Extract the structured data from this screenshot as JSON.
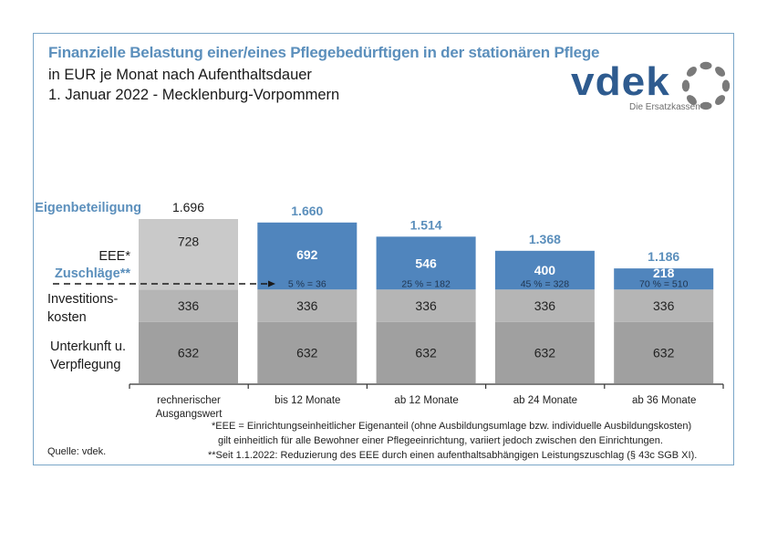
{
  "header": {
    "title": "Finanzielle Belastung einer/eines Pflegebedürftigen in der stationären Pflege",
    "subtitle": "in EUR je Monat nach Aufenthaltsdauer",
    "date_region": "1. Januar 2022 - Mecklenburg-Vorpommern"
  },
  "logo": {
    "wordmark": "vdek",
    "tagline": "Die Ersatzkassen"
  },
  "colors": {
    "title_blue": "#5b8fbc",
    "eee_blue": "#5085bd",
    "eee_grey": "#c9c9c9",
    "invest_grey": "#b5b5b5",
    "unterkunft_grey": "#a0a0a0",
    "logo_blue": "#2e5b8f"
  },
  "row_labels": {
    "eigenbeteiligung": "Eigenbeteiligung",
    "eee": "EEE*",
    "zuschlaege": "Zuschläge**",
    "investitionskosten_1": "Investitions-",
    "investitionskosten_2": "kosten",
    "unterkunft_1": "Unterkunft u.",
    "unterkunft_2": "Verpflegung"
  },
  "chart_data": {
    "type": "bar",
    "stacked": true,
    "title": "Finanzielle Belastung einer/eines Pflegebedürftigen in der stationären Pflege",
    "subtitle": "in EUR je Monat nach Aufenthaltsdauer – 1. Januar 2022 - Mecklenburg-Vorpommern",
    "xlabel": "",
    "ylabel": "EUR je Monat",
    "categories": [
      "rechnerischer Ausgangswert",
      "bis 12 Monate",
      "ab 12 Monate",
      "ab 24 Monate",
      "ab 36 Monate"
    ],
    "category_lines": [
      [
        "rechnerischer",
        "Ausgangswert"
      ],
      [
        "bis 12 Monate"
      ],
      [
        "ab 12 Monate"
      ],
      [
        "ab 24 Monate"
      ],
      [
        "ab 36 Monate"
      ]
    ],
    "series": [
      {
        "name": "Unterkunft u. Verpflegung",
        "values": [
          632,
          632,
          632,
          632,
          632
        ]
      },
      {
        "name": "Investitionskosten",
        "values": [
          336,
          336,
          336,
          336,
          336
        ]
      },
      {
        "name": "EEE*",
        "values": [
          728,
          692,
          546,
          400,
          218
        ]
      }
    ],
    "totals": [
      1696,
      1660,
      1514,
      1368,
      1186
    ],
    "total_labels": [
      "1.696",
      "1.660",
      "1.514",
      "1.368",
      "1.186"
    ],
    "zuschlag_labels": [
      "",
      "5 % = 36",
      "25 % = 182",
      "45 % = 328",
      "70 % = 510"
    ],
    "zuschlag_percent": [
      0,
      5,
      25,
      45,
      70
    ],
    "zuschlag_values": [
      0,
      36,
      182,
      328,
      510
    ],
    "ylim": [
      0,
      1700
    ],
    "grid": false,
    "legend": "left-side row labels"
  },
  "footnotes": {
    "eee_1": "*EEE = Einrichtungseinheitlicher  Eigenanteil (ohne Ausbildungsumlage bzw. individuelle Ausbildungskosten)",
    "eee_2": "gilt einheitlich für alle Bewohner einer Pflegeeinrichtung, variiert jedoch zwischen den Einrichtungen.",
    "zuschlag": "**Seit 1.1.2022: Reduzierung des EEE durch einen aufenthaltsabhängigen Leistungszuschlag  (§ 43c SGB XI).",
    "source": "Quelle: vdek."
  }
}
